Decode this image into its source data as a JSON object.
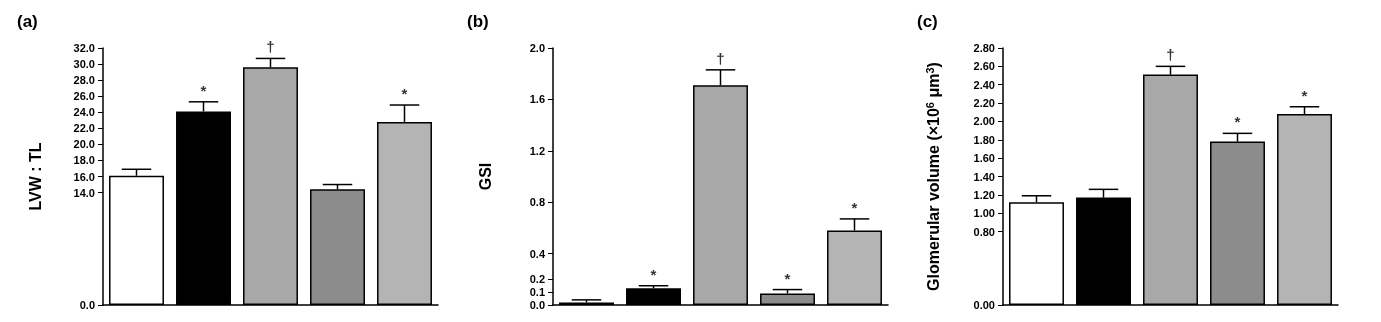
{
  "chart_data": [
    {
      "type": "bar",
      "title": "(a)",
      "ylabel": "LVW : TL",
      "categories": [
        null,
        null,
        null,
        null,
        null
      ],
      "values": [
        16.1,
        24.1,
        29.6,
        14.4,
        22.8
      ],
      "errors": [
        [
          16.1,
          16.9
        ],
        [
          24.1,
          25.3
        ],
        [
          29.6,
          30.7
        ],
        [
          14.4,
          15.0
        ],
        [
          22.8,
          24.9
        ]
      ],
      "colors": [
        "#ffffff",
        "#000000",
        "#a8a8a8",
        "#8c8c8c",
        "#b4b4b4"
      ],
      "value_labels": [
        null,
        "*",
        "†",
        null,
        "*"
      ],
      "ylim": [
        0,
        32
      ],
      "yticks": [
        {
          "value": 0,
          "label": "0.0"
        },
        {
          "value": 14,
          "label": "14.0"
        },
        {
          "value": 16,
          "label": "16.0"
        },
        {
          "value": 18,
          "label": "18.0"
        },
        {
          "value": 20,
          "label": "20.0"
        },
        {
          "value": 22,
          "label": "22.0"
        },
        {
          "value": 24,
          "label": "24.0"
        },
        {
          "value": 26,
          "label": "26.0"
        },
        {
          "value": 28,
          "label": "28.0"
        },
        {
          "value": 30,
          "label": "30.0"
        },
        {
          "value": 32,
          "label": "32.0"
        }
      ]
    },
    {
      "type": "bar",
      "title": "(b)",
      "ylabel": "GSI",
      "categories": [
        null,
        null,
        null,
        null,
        null
      ],
      "values": [
        0.02,
        0.13,
        1.71,
        0.09,
        0.58
      ],
      "errors": [
        [
          0.02,
          0.04
        ],
        [
          0.13,
          0.15
        ],
        [
          1.71,
          1.83
        ],
        [
          0.09,
          0.12
        ],
        [
          0.58,
          0.67
        ]
      ],
      "colors": [
        "#ffffff",
        "#000000",
        "#a8a8a8",
        "#8c8c8c",
        "#b4b4b4"
      ],
      "value_labels": [
        null,
        "*",
        "†",
        "*",
        "*"
      ],
      "ylim": [
        0,
        2
      ],
      "yticks": [
        {
          "value": 0,
          "label": "0.0"
        },
        0.1,
        0.2,
        0.4,
        0.8,
        1.2,
        1.6,
        {
          "value": 2,
          "label": "2.0"
        }
      ]
    },
    {
      "type": "bar",
      "title": "(c)",
      "ylabel": "Glomerular volume (×10$^{6}$ μm$^{3}$)",
      "categories": [
        null,
        null,
        null,
        null,
        null
      ],
      "values": [
        1.12,
        1.17,
        2.51,
        1.78,
        2.08
      ],
      "errors": [
        [
          1.12,
          1.19
        ],
        [
          1.17,
          1.26
        ],
        [
          2.51,
          2.6
        ],
        [
          1.78,
          1.87
        ],
        [
          2.08,
          2.16
        ]
      ],
      "colors": [
        "#ffffff",
        "#000000",
        "#a8a8a8",
        "#8c8c8c",
        "#b4b4b4"
      ],
      "value_labels": [
        null,
        null,
        "†",
        "*",
        "*"
      ],
      "ylim": [
        0,
        2.8
      ],
      "yticks": [
        {
          "value": 0,
          "label": "0.00"
        },
        {
          "value": 0.8,
          "label": "0.80"
        },
        {
          "value": 1,
          "label": "1.00"
        },
        {
          "value": 1.2,
          "label": "1.20"
        },
        {
          "value": 1.4,
          "label": "1.40"
        },
        {
          "value": 1.6,
          "label": "1.60"
        },
        {
          "value": 1.8,
          "label": "1.80"
        },
        {
          "value": 2,
          "label": "2.00"
        },
        {
          "value": 2.2,
          "label": "2.20"
        },
        {
          "value": 2.4,
          "label": "2.40"
        },
        {
          "value": 2.6,
          "label": "2.60"
        },
        {
          "value": 2.8,
          "label": "2.80"
        }
      ]
    }
  ]
}
